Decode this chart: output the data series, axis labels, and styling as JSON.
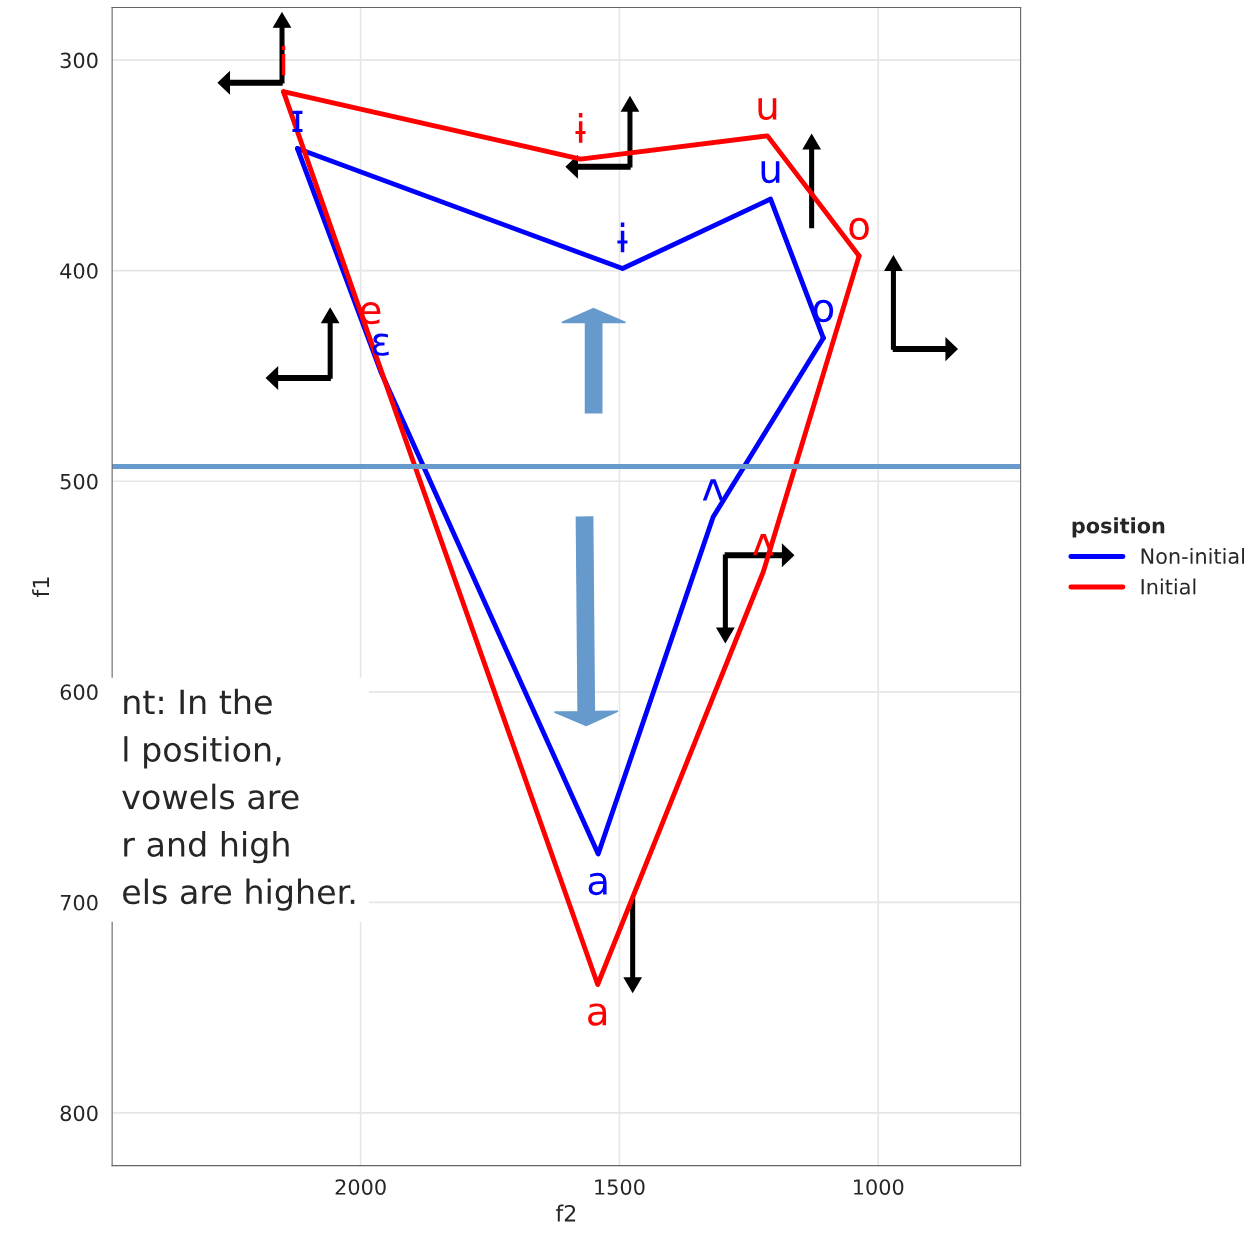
{
  "chart_data": {
    "type": "line",
    "xlabel": "f2",
    "ylabel": "f1",
    "legend_title": "position",
    "xlim": [
      2480,
      725
    ],
    "xticks": [
      2000,
      1500,
      1000
    ],
    "ylim": [
      825,
      275
    ],
    "yticks": [
      300,
      400,
      500,
      600,
      700,
      800
    ],
    "grid": true,
    "legend": "right",
    "marker": "none",
    "line_style": "solid",
    "series": [
      {
        "name": "Non-initial",
        "color": "#0000ff",
        "x": [
          2122,
          1494,
          1208,
          1106
        ],
        "values": [
          342,
          399,
          366,
          432
        ],
        "value_labels": [
          "ɪ",
          "ɨ",
          "u",
          "o"
        ]
      },
      {
        "color": "#0000ff",
        "x": [
          1106,
          1319,
          1541,
          1961,
          2122
        ],
        "values": [
          432,
          517,
          677,
          448,
          342
        ],
        "value_labels": [
          null,
          "ʌ",
          "a",
          "ɛ",
          null
        ]
      },
      {
        "name": "Initial",
        "color": "#ff0000",
        "x": [
          2149,
          1575,
          1214,
          1037
        ],
        "values": [
          315,
          347,
          336,
          393
        ],
        "value_labels": [
          "i",
          "ɨ",
          "u",
          "o"
        ]
      },
      {
        "color": "#ff0000",
        "x": [
          1037,
          1222,
          1542,
          1981,
          2149
        ],
        "values": [
          393,
          543,
          739,
          433,
          315
        ],
        "value_labels": [
          null,
          "ʌ",
          "a",
          "e",
          null
        ]
      }
    ],
    "ref_lines": [
      {
        "axis": "y",
        "value": 493,
        "color": "#6699cc"
      }
    ],
    "annotations": [
      "nt: In the\nl position,\nvowels are\nr and high\nels are higher."
    ]
  }
}
